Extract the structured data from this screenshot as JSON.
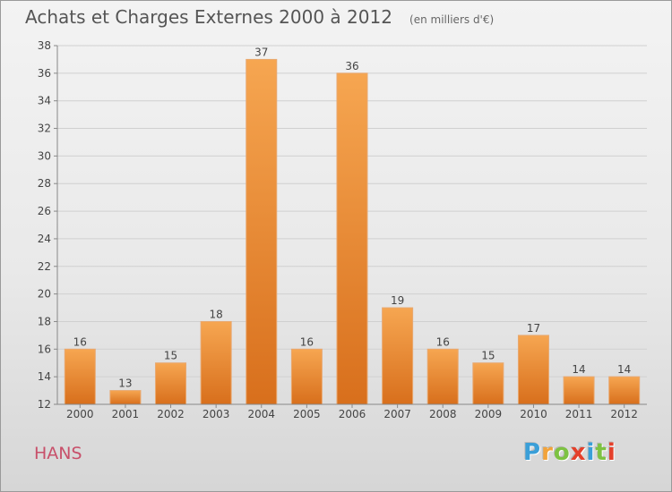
{
  "chart_data": {
    "type": "bar",
    "title": "Achats et Charges Externes 2000 à 2012",
    "subtitle": "(en milliers d'€)",
    "categories": [
      "2000",
      "2001",
      "2002",
      "2003",
      "2004",
      "2005",
      "2006",
      "2007",
      "2008",
      "2009",
      "2010",
      "2011",
      "2012"
    ],
    "values": [
      16,
      13,
      15,
      18,
      37,
      16,
      36,
      19,
      16,
      15,
      17,
      14,
      14
    ],
    "ylim": [
      12,
      38
    ],
    "yticks": [
      12,
      14,
      16,
      18,
      20,
      22,
      24,
      26,
      28,
      30,
      32,
      34,
      36,
      38
    ],
    "grid": true,
    "bar_color": "#f0923a"
  },
  "commune": "HANS",
  "logo": {
    "letters": [
      "P",
      "r",
      "o",
      "x",
      "i",
      "t",
      "i"
    ],
    "colors": [
      "#3a9fd8",
      "#f2a33a",
      "#7dc242",
      "#e4402b",
      "#3a9fd8",
      "#7dc242",
      "#e4402b"
    ]
  }
}
